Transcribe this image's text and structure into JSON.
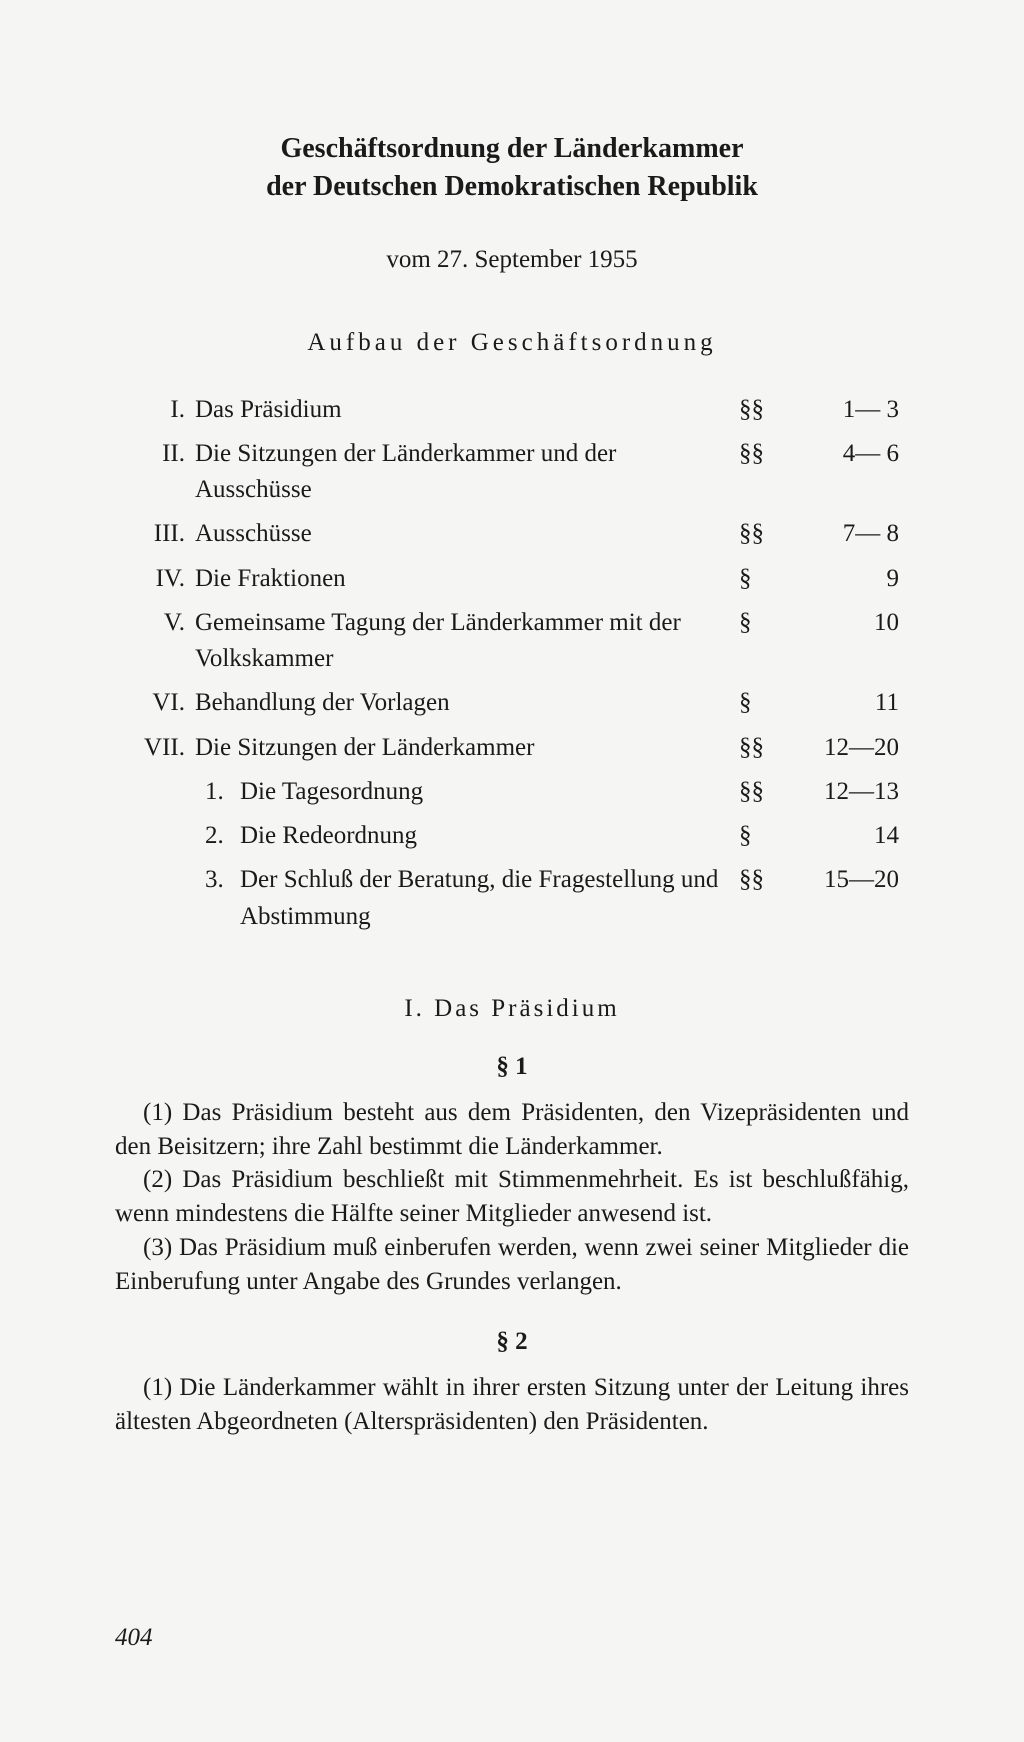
{
  "title_line1": "Geschäftsordnung der Länderkammer",
  "title_line2": "der Deutschen Demokratischen Republik",
  "date": "vom 27. September 1955",
  "toc_heading": "Aufbau der Geschäftsordnung",
  "toc": [
    {
      "num": "I.",
      "label": "Das Präsidium",
      "sym": "§§",
      "range": "1— 3"
    },
    {
      "num": "II.",
      "label": "Die Sitzungen der Länderkammer und der Ausschüsse",
      "sym": "§§",
      "range": "4— 6"
    },
    {
      "num": "III.",
      "label": "Ausschüsse",
      "sym": "§§",
      "range": "7— 8"
    },
    {
      "num": "IV.",
      "label": "Die Fraktionen",
      "sym": "§",
      "range": "9"
    },
    {
      "num": "V.",
      "label": "Gemeinsame Tagung der Länderkammer mit der Volkskammer",
      "sym": "§",
      "range": "10"
    },
    {
      "num": "VI.",
      "label": "Behandlung der Vorlagen",
      "sym": "§",
      "range": "11"
    },
    {
      "num": "VII.",
      "label": "Die Sitzungen der Länderkammer",
      "sym": "§§",
      "range": "12—20"
    }
  ],
  "toc_sub": [
    {
      "num": "1.",
      "label": "Die Tagesordnung",
      "sym": "§§",
      "range": "12—13"
    },
    {
      "num": "2.",
      "label": "Die Redeordnung",
      "sym": "§",
      "range": "14"
    },
    {
      "num": "3.",
      "label": "Der Schluß der Beratung, die Fragestellung und Abstimmung",
      "sym": "§§",
      "range": "15—20"
    }
  ],
  "section1_heading": "I. Das Präsidium",
  "s1_heading": "§ 1",
  "s1_p1": "(1) Das Präsidium besteht aus dem Präsidenten, den Vizepräsidenten und den Beisitzern; ihre Zahl bestimmt die Länderkammer.",
  "s1_p2": "(2) Das Präsidium beschließt mit Stimmenmehrheit. Es ist beschlußfähig, wenn mindestens die Hälfte seiner Mitglieder anwesend ist.",
  "s1_p3": "(3) Das Präsidium muß einberufen werden, wenn zwei seiner Mitglieder die Einberufung unter Angabe des Grundes verlangen.",
  "s2_heading": "§ 2",
  "s2_p1": "(1) Die Länderkammer wählt in ihrer ersten Sitzung unter der Leitung ihres ältesten Abgeordneten (Alterspräsidenten) den Präsidenten.",
  "page_number": "404"
}
